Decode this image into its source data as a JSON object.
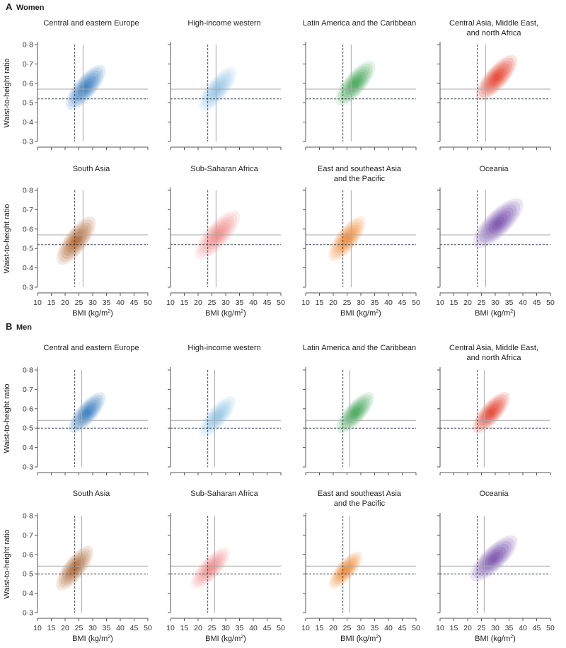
{
  "figure": {
    "x_axis_label": "BMI (kg/m",
    "x_axis_label_sup": "2",
    "x_axis_label_end": ")",
    "y_axis_label": "Waist-to-height ratio"
  },
  "chart_data": [
    {
      "type": "density-contour",
      "section_letter": "A",
      "section_label": "Women",
      "xlim": [
        10,
        50
      ],
      "ylim": [
        0.3,
        0.8
      ],
      "x_ticks": [
        10,
        15,
        20,
        25,
        30,
        35,
        40,
        45,
        50
      ],
      "x_tick_labels": [
        "10",
        "15",
        "20",
        "25",
        "30",
        "35",
        "40",
        "45",
        "50"
      ],
      "y_ticks": [
        0.3,
        0.4,
        0.5,
        0.6,
        0.7,
        0.8
      ],
      "y_tick_labels": [
        "0·3",
        "0·4",
        "0·5",
        "0·6",
        "0·7",
        "0·8"
      ],
      "ref_lines": {
        "bmi_dashed": 23.5,
        "bmi_solid": 26.5,
        "whtr_dashed": 0.52,
        "whtr_solid": 0.57
      },
      "panels": [
        {
          "title": [
            "Central and eastern Europe"
          ],
          "color": "#1f6fb8",
          "center": [
            27.5,
            0.58
          ],
          "spread": [
            6.5,
            0.11
          ],
          "lowest_opacity": 0.13
        },
        {
          "title": [
            "High-income western"
          ],
          "color": "#86bde3",
          "center": [
            27.0,
            0.57
          ],
          "spread": [
            6.2,
            0.11
          ],
          "lowest_opacity": 0.12
        },
        {
          "title": [
            "Latin America and the Caribbean"
          ],
          "color": "#2e9f46",
          "center": [
            28.0,
            0.6
          ],
          "spread": [
            6.5,
            0.11
          ],
          "lowest_opacity": 0.13
        },
        {
          "title": [
            "Central Asia, Middle East,",
            "and north Africa"
          ],
          "color": "#e3331f",
          "center": [
            30.5,
            0.63
          ],
          "spread": [
            6.8,
            0.11
          ],
          "lowest_opacity": 0.14
        },
        {
          "title": [
            "South Asia"
          ],
          "color": "#a8561c",
          "center": [
            24.0,
            0.54
          ],
          "spread": [
            6.3,
            0.12
          ],
          "lowest_opacity": 0.13
        },
        {
          "title": [
            "Sub-Saharan Africa"
          ],
          "color": "#f17b7b",
          "center": [
            27.0,
            0.57
          ],
          "spread": [
            7.5,
            0.12
          ],
          "lowest_opacity": 0.12
        },
        {
          "title": [
            "East and southeast Asia",
            "and the Pacific"
          ],
          "color": "#f27e1e",
          "center": [
            25.0,
            0.55
          ],
          "spread": [
            6.0,
            0.11
          ],
          "lowest_opacity": 0.13
        },
        {
          "title": [
            "Oceania"
          ],
          "color": "#6a3ea4",
          "center": [
            31.0,
            0.63
          ],
          "spread": [
            8.5,
            0.12
          ],
          "lowest_opacity": 0.13
        }
      ]
    },
    {
      "type": "density-contour",
      "section_letter": "B",
      "section_label": "Men",
      "xlim": [
        10,
        50
      ],
      "ylim": [
        0.3,
        0.8
      ],
      "x_ticks": [
        10,
        15,
        20,
        25,
        30,
        35,
        40,
        45,
        50
      ],
      "x_tick_labels": [
        "10",
        "15",
        "20",
        "25",
        "30",
        "35",
        "40",
        "45",
        "50"
      ],
      "y_ticks": [
        0.3,
        0.4,
        0.5,
        0.6,
        0.7,
        0.8
      ],
      "y_tick_labels": [
        "0·3",
        "0·4",
        "0·5",
        "0·6",
        "0·7",
        "0·8"
      ],
      "ref_lines": {
        "bmi_dashed": 23.5,
        "bmi_solid": 26.0,
        "whtr_dashed": 0.5,
        "whtr_solid": 0.54
      },
      "panels": [
        {
          "title": [
            "Central and eastern Europe"
          ],
          "color": "#1f6fb8",
          "center": [
            28.0,
            0.58
          ],
          "spread": [
            6.0,
            0.1
          ],
          "lowest_opacity": 0.13
        },
        {
          "title": [
            "High-income western"
          ],
          "color": "#86bde3",
          "center": [
            27.0,
            0.56
          ],
          "spread": [
            6.0,
            0.1
          ],
          "lowest_opacity": 0.12
        },
        {
          "title": [
            "Latin America and the Caribbean"
          ],
          "color": "#2e9f46",
          "center": [
            28.0,
            0.58
          ],
          "spread": [
            6.2,
            0.1
          ],
          "lowest_opacity": 0.13
        },
        {
          "title": [
            "Central Asia, Middle East,",
            "and north Africa"
          ],
          "color": "#e3331f",
          "center": [
            28.5,
            0.58
          ],
          "spread": [
            6.2,
            0.1
          ],
          "lowest_opacity": 0.14
        },
        {
          "title": [
            "South Asia"
          ],
          "color": "#a8561c",
          "center": [
            23.5,
            0.53
          ],
          "spread": [
            6.0,
            0.11
          ],
          "lowest_opacity": 0.13
        },
        {
          "title": [
            "Sub-Saharan Africa"
          ],
          "color": "#f17b7b",
          "center": [
            24.5,
            0.53
          ],
          "spread": [
            6.5,
            0.1
          ],
          "lowest_opacity": 0.12
        },
        {
          "title": [
            "East and southeast Asia",
            "and the Pacific"
          ],
          "color": "#f27e1e",
          "center": [
            24.5,
            0.52
          ],
          "spread": [
            5.5,
            0.09
          ],
          "lowest_opacity": 0.13
        },
        {
          "title": [
            "Oceania"
          ],
          "color": "#6a3ea4",
          "center": [
            29.5,
            0.58
          ],
          "spread": [
            8.0,
            0.11
          ],
          "lowest_opacity": 0.13
        }
      ]
    }
  ]
}
